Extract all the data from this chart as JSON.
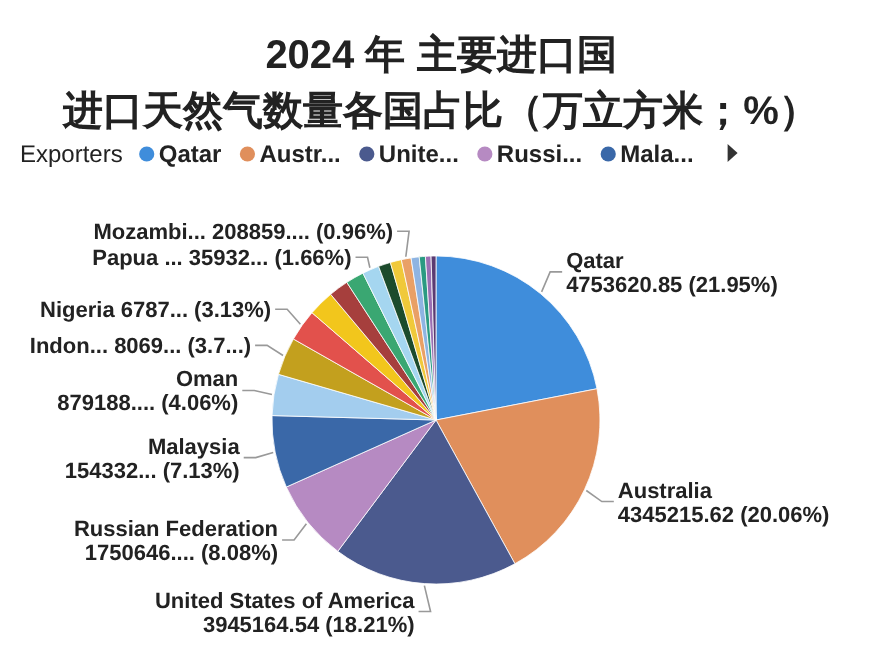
{
  "chart_data": {
    "type": "pie",
    "title": "2024 年 主要进口国",
    "subtitle": "进口天然气数量各国占比（万立方米；%）",
    "legend_title": "Exporters",
    "categories": [
      "Qatar",
      "Australia",
      "United States of America",
      "Russian Federation",
      "Malaysia",
      "Oman",
      "Indon...",
      "Nigeria",
      null,
      null,
      null,
      "Papua ...",
      null,
      null,
      "Mozambi...",
      null,
      null,
      null,
      null
    ],
    "values": [
      21.95,
      20.06,
      18.21,
      8.08,
      7.13,
      4.06,
      3.73,
      3.13,
      2.55,
      1.95,
      1.8,
      1.66,
      1.2,
      1.1,
      0.96,
      0.8,
      0.6,
      0.55,
      0.48
    ],
    "value_labels": [
      "4753620.85 (21.95%)",
      "4345215.62 (20.06%)",
      "3945164.54 (18.21%)",
      "1750646.... (8.08%)",
      "154332... (7.13%)",
      "879188.... (4.06%)",
      "8069... (3.7...)",
      "6787... (3.13%)",
      null,
      null,
      null,
      "35932... (1.66%)",
      null,
      null,
      "208859.... (0.96%)",
      null,
      null,
      null,
      null
    ],
    "colors": [
      "#3f8ddb",
      "#e08f5c",
      "#4b5a8e",
      "#b68ac2",
      "#3a68a8",
      "#a3cdee",
      "#c3a01e",
      "#e2514c",
      "#f2c61c",
      "#a63f3d",
      "#3aa772",
      "#a5d6f0",
      "#1c4b2c",
      "#f0c93a",
      "#e9a066",
      "#8eb4e2",
      "#2b9a82",
      "#9a6fb3",
      "#5b3b72"
    ],
    "annotations": [
      "Qatar",
      "Austr...",
      "Unite...",
      "Russi...",
      "Mala..."
    ]
  }
}
